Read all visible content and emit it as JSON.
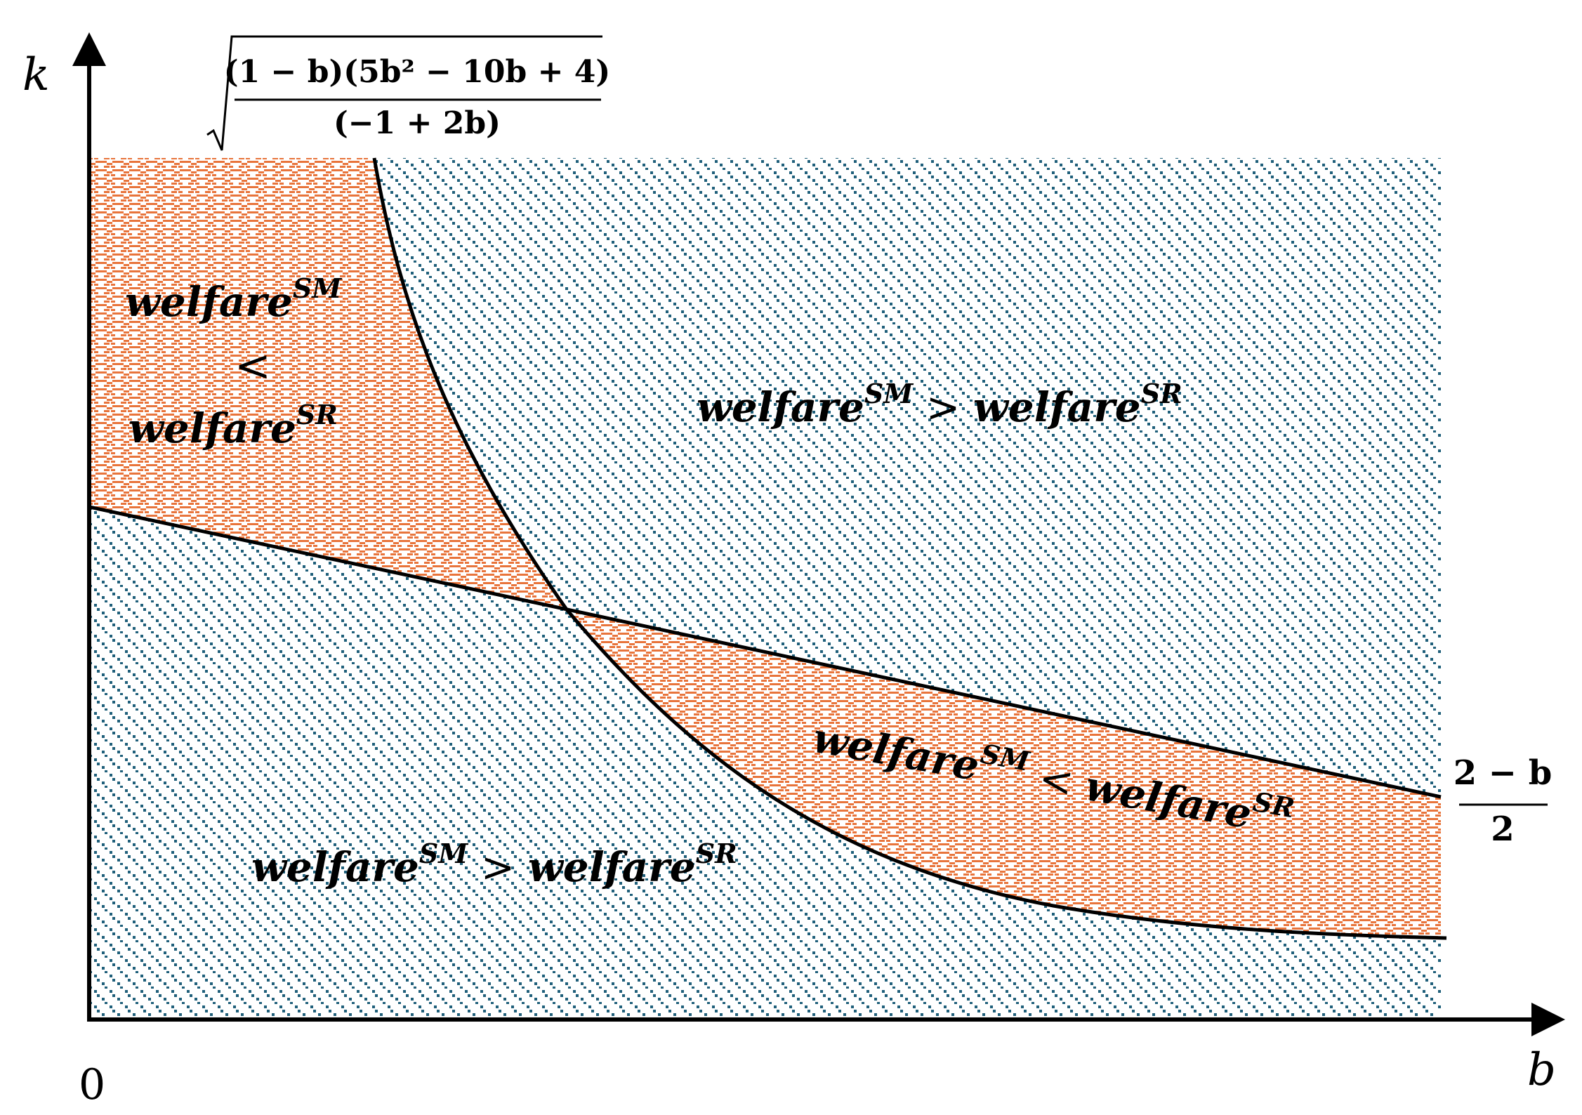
{
  "axes": {
    "y_label": "k",
    "x_label": "b",
    "origin_label": "0"
  },
  "curves": {
    "line_label": {
      "numerator": "2 − b",
      "denominator": "2"
    },
    "curve_label": {
      "numerator": "(1 − b)(5b² − 10b + 4)",
      "denominator": "(−1 + 2b)"
    }
  },
  "regions": {
    "upper_left": {
      "line1": "welfare",
      "sup1": "SM",
      "line2": "<",
      "line3": "welfare",
      "sup3": "SR"
    },
    "upper_right": {
      "a": "welfare",
      "supA": "SM",
      "op": " > ",
      "b": "welfare",
      "supB": "SR"
    },
    "lower_left": {
      "a": "welfare",
      "supA": "SM",
      "op": " > ",
      "b": "welfare",
      "supB": "SR"
    },
    "lower_right": {
      "a": "welfare",
      "supA": "SM",
      "op": " < ",
      "b": "welfare",
      "supB": "SR"
    }
  },
  "colors": {
    "blue_pattern": "#1f5f7a",
    "orange_pattern": "#e8743b",
    "axis": "#000000"
  }
}
